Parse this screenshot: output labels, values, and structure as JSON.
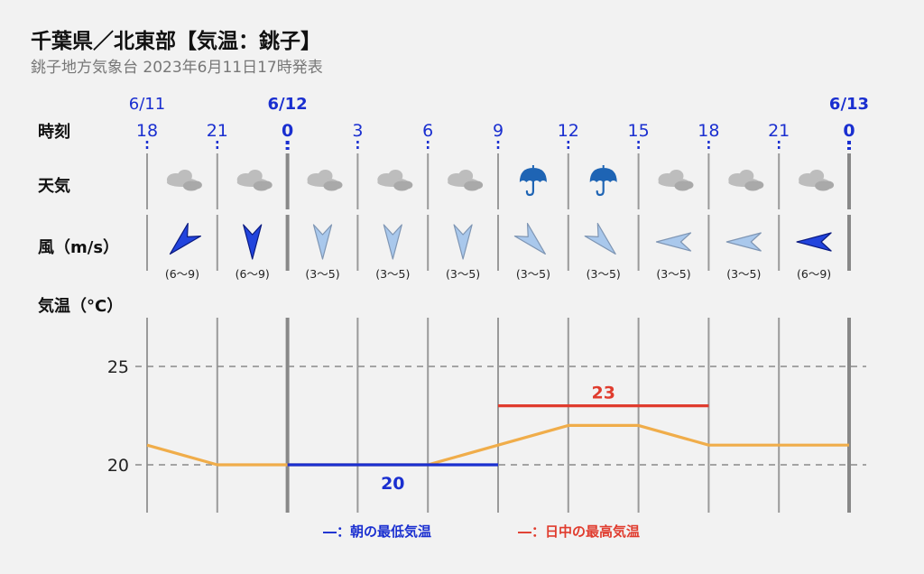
{
  "header": {
    "title": "千葉県／北東部【気温：銚子】",
    "subtitle": "銚子地方気象台 2023年6月11日17時発表"
  },
  "colors": {
    "blue": "#1a2fd0",
    "red": "#e03c2e",
    "orange": "#f0ad4a",
    "wind_strong": "#2244dd",
    "wind_weak": "#a9c8ec",
    "cloud": "#bdbdbd"
  },
  "row_labels": {
    "time": "時刻",
    "weather": "天気",
    "wind": "風（m/s）",
    "temp": "気温（°C）"
  },
  "chart_data": {
    "type": "line",
    "title": "千葉県／北東部【気温：銚子】",
    "subtitle": "銚子地方気象台 2023年6月11日17時発表",
    "dates": [
      {
        "label": "6/11",
        "at_index": 0,
        "bold": false
      },
      {
        "label": "6/12",
        "at_index": 2,
        "bold": true
      },
      {
        "label": "6/13",
        "at_index": 10,
        "bold": true
      }
    ],
    "x": [
      "18",
      "21",
      "0",
      "3",
      "6",
      "9",
      "12",
      "15",
      "18",
      "21",
      "0"
    ],
    "bold_hours": [
      2,
      10
    ],
    "weather": [
      "cloud-icon",
      "cloud-icon",
      "cloud-icon",
      "cloud-icon",
      "cloud-icon",
      "umbrella-icon",
      "umbrella-icon",
      "cloud-icon",
      "cloud-icon",
      "cloud-icon"
    ],
    "wind": [
      {
        "dir_deg": 225,
        "speed": "(6〜9)",
        "strength": "strong"
      },
      {
        "dir_deg": 180,
        "speed": "(6〜9)",
        "strength": "strong"
      },
      {
        "dir_deg": 180,
        "speed": "(3〜5)",
        "strength": "weak"
      },
      {
        "dir_deg": 180,
        "speed": "(3〜5)",
        "strength": "weak"
      },
      {
        "dir_deg": 180,
        "speed": "(3〜5)",
        "strength": "weak"
      },
      {
        "dir_deg": 135,
        "speed": "(3〜5)",
        "strength": "weak"
      },
      {
        "dir_deg": 135,
        "speed": "(3〜5)",
        "strength": "weak"
      },
      {
        "dir_deg": 270,
        "speed": "(3〜5)",
        "strength": "weak"
      },
      {
        "dir_deg": 270,
        "speed": "(3〜5)",
        "strength": "weak"
      },
      {
        "dir_deg": 270,
        "speed": "(6〜9)",
        "strength": "strong"
      }
    ],
    "series": [
      {
        "values": [
          21,
          20,
          20,
          20,
          20,
          21,
          22,
          22,
          21,
          21,
          21
        ]
      }
    ],
    "yticks": [
      20,
      25
    ],
    "ylim": [
      17.5,
      27.5
    ],
    "grid": "dashed",
    "min_temp": {
      "value": 20,
      "from_index": 2,
      "to_index": 5,
      "label": "20"
    },
    "max_temp": {
      "value": 23,
      "from_index": 5,
      "to_index": 8,
      "label": "23"
    },
    "legend": {
      "position": "bottom",
      "min_label": "―：朝の最低気温",
      "max_label": "―：日中の最高気温"
    }
  }
}
